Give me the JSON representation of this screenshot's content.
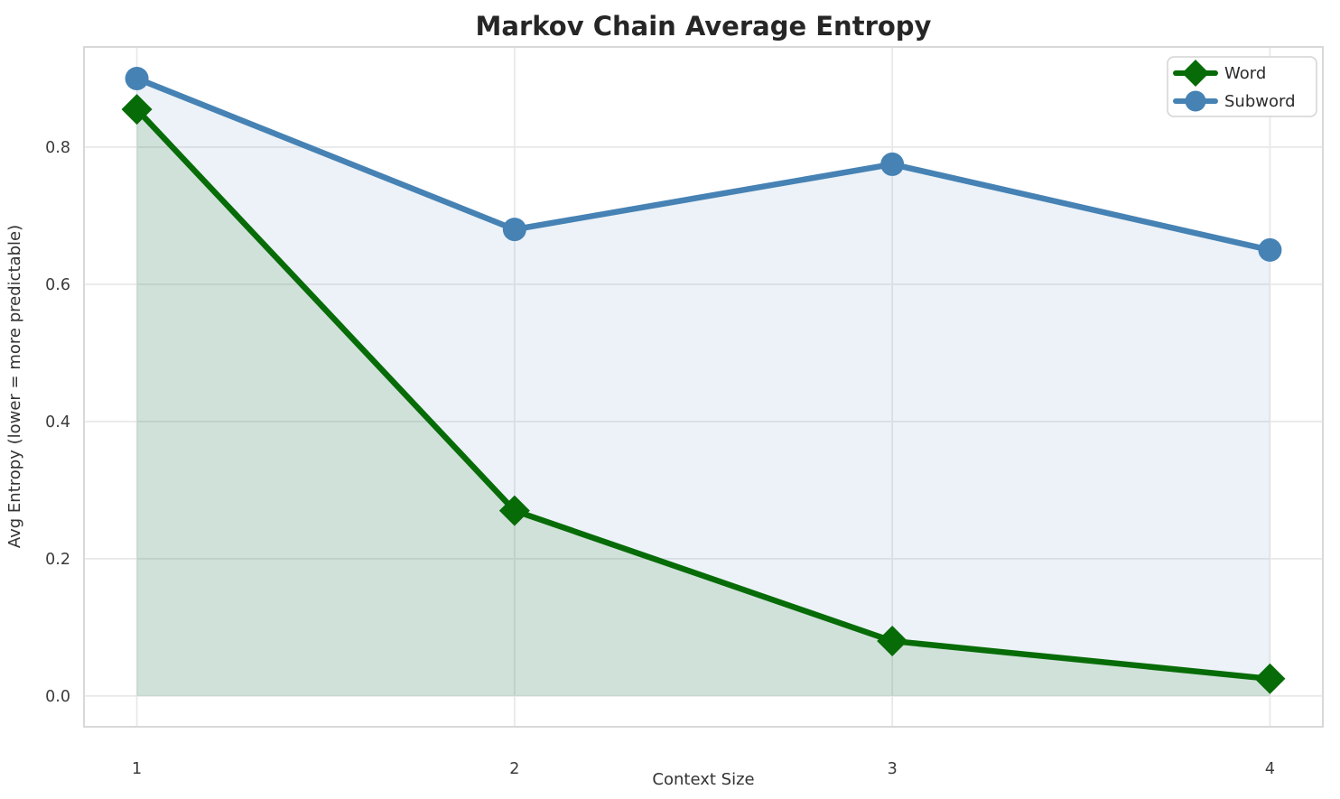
{
  "figure": {
    "title": "Markov Chain Average Entropy",
    "xlabel": "Context Size",
    "ylabel": "Avg Entropy (lower = more predictable)"
  },
  "chart_data": {
    "type": "line",
    "title": "Markov Chain Average Entropy",
    "xlabel": "Context Size",
    "ylabel": "Avg Entropy (lower = more predictable)",
    "x": [
      1,
      2,
      3,
      4
    ],
    "series": [
      {
        "name": "Word",
        "values": [
          0.855,
          0.27,
          0.08,
          0.025
        ],
        "color": "#076c07",
        "marker": "diamond",
        "fill_to_zero": true,
        "fill_opacity": 0.12
      },
      {
        "name": "Subword",
        "values": [
          0.9,
          0.68,
          0.775,
          0.65
        ],
        "color": "#4682b4",
        "marker": "circle",
        "fill_to_zero": true,
        "fill_opacity": 0.1
      }
    ],
    "xticks": [
      1,
      2,
      3,
      4
    ],
    "yticks": [
      0.0,
      0.2,
      0.4,
      0.6,
      0.8
    ],
    "ytick_labels": [
      "0.0",
      "0.2",
      "0.4",
      "0.6",
      "0.8"
    ],
    "xlim": [
      0.86,
      4.14
    ],
    "ylim": [
      -0.045,
      0.946
    ],
    "grid": true,
    "grid_color": "#e9e9e9",
    "spine_color": "#d8d8d8",
    "legend_position": "upper right",
    "legend": [
      "Word",
      "Subword"
    ],
    "line_width": 6.5,
    "marker_size_circle_radius": 13,
    "marker_size_diamond_half": 17
  }
}
